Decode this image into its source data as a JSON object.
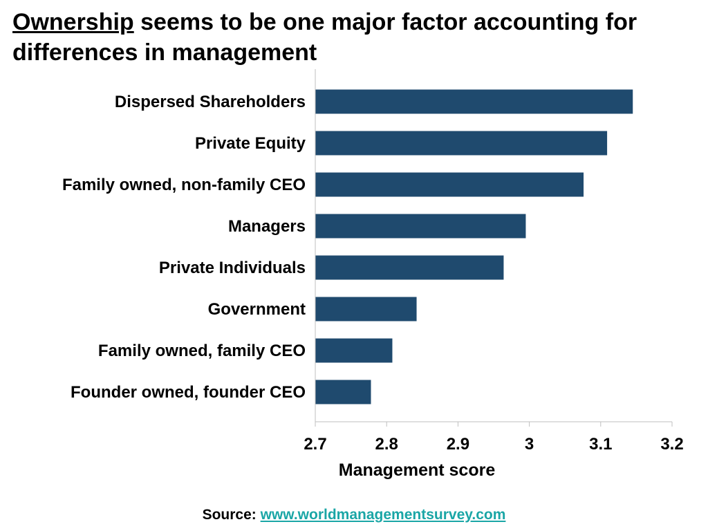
{
  "title": {
    "emphasis": "Ownership",
    "rest": " seems to be one major factor accounting for differences in management"
  },
  "colors": {
    "bar": "#1f4a6e",
    "axis": "#bfbfbf",
    "link": "#1aa6a6"
  },
  "chart_data": {
    "type": "bar",
    "orientation": "horizontal",
    "categories": [
      "Dispersed Shareholders",
      "Private Equity",
      "Family owned, non-family CEO",
      "Managers",
      "Private Individuals",
      "Government",
      "Family owned, family CEO",
      "Founder owned, founder CEO"
    ],
    "values": [
      3.145,
      3.109,
      3.076,
      2.995,
      2.964,
      2.842,
      2.808,
      2.778
    ],
    "xlabel": "Management score",
    "xlim": [
      2.7,
      3.2
    ],
    "xticks": [
      "2.7",
      "2.8",
      "2.9",
      "3",
      "3.1",
      "3.2"
    ],
    "grid": false
  },
  "source": {
    "label": "Source:",
    "link_text": "www.worldmanagementsurvey.com"
  }
}
